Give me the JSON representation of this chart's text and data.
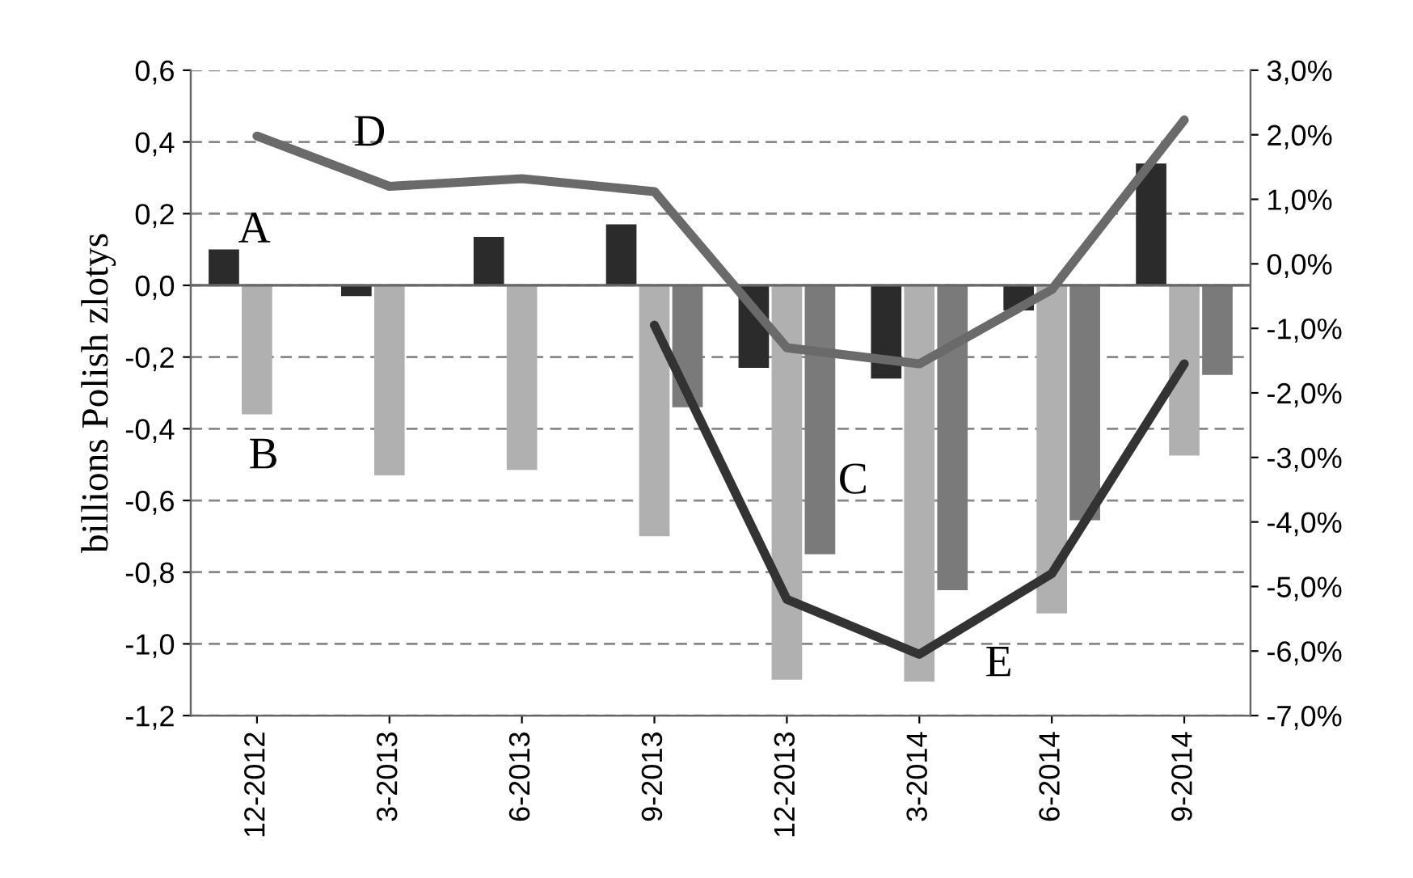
{
  "chart_data": {
    "type": "bar",
    "ylabel": "billions Polish zlotys",
    "categories": [
      "12-2012",
      "3-2013",
      "6-2013",
      "9-2013",
      "12-2013",
      "3-2014",
      "6-2014",
      "9-2014"
    ],
    "series": [
      {
        "name": "A",
        "color": "#2b2b2b",
        "values": [
          0.1,
          -0.03,
          0.135,
          0.17,
          -0.23,
          -0.26,
          -0.07,
          0.34
        ]
      },
      {
        "name": "B",
        "color": "#b0b0b0",
        "values": [
          -0.36,
          -0.53,
          -0.515,
          -0.7,
          -1.1,
          -1.105,
          -0.915,
          -0.475
        ]
      },
      {
        "name": "C",
        "color": "#7a7a7a",
        "values": [
          null,
          null,
          null,
          -0.34,
          -0.75,
          -0.85,
          -0.655,
          -0.25
        ]
      },
      {
        "name": "D",
        "type": "line",
        "axis": "y2",
        "color": "#6a6a6a",
        "values": [
          1.98,
          1.2,
          1.32,
          1.12,
          -1.3,
          -1.55,
          -0.4,
          2.23
        ]
      },
      {
        "name": "E",
        "type": "line",
        "axis": "y2",
        "color": "#333333",
        "values": [
          null,
          null,
          null,
          -0.95,
          -5.2,
          -6.05,
          -4.8,
          -1.55
        ]
      }
    ],
    "ylim": [
      -1.2,
      0.6
    ],
    "yticks": [
      {
        "value": -1.2,
        "label": "-1,2"
      },
      {
        "value": -1.0,
        "label": "-1,0"
      },
      {
        "value": -0.8,
        "label": "-0,8"
      },
      {
        "value": -0.6,
        "label": "-0,6"
      },
      {
        "value": -0.4,
        "label": "-0,4"
      },
      {
        "value": -0.2,
        "label": "-0,2"
      },
      {
        "value": 0,
        "label": "0,0"
      },
      {
        "value": 0.2,
        "label": "0,2"
      },
      {
        "value": 0.4,
        "label": "0,4"
      },
      {
        "value": 0.6,
        "label": "0,6"
      }
    ],
    "y2lim": [
      -7,
      3
    ],
    "y2ticks": [
      {
        "value": -7,
        "label": "-7,0%"
      },
      {
        "value": -6,
        "label": "-6,0%"
      },
      {
        "value": -5,
        "label": "-5,0%"
      },
      {
        "value": -4,
        "label": "-4,0%"
      },
      {
        "value": -3,
        "label": "-3,0%"
      },
      {
        "value": -2,
        "label": "-2,0%"
      },
      {
        "value": -1,
        "label": "-1,0%"
      },
      {
        "value": 0,
        "label": "0,0%"
      },
      {
        "value": 1,
        "label": "1,0%"
      },
      {
        "value": 2,
        "label": "2,0%"
      },
      {
        "value": 3,
        "label": "3,0%"
      }
    ],
    "grid": "y"
  }
}
